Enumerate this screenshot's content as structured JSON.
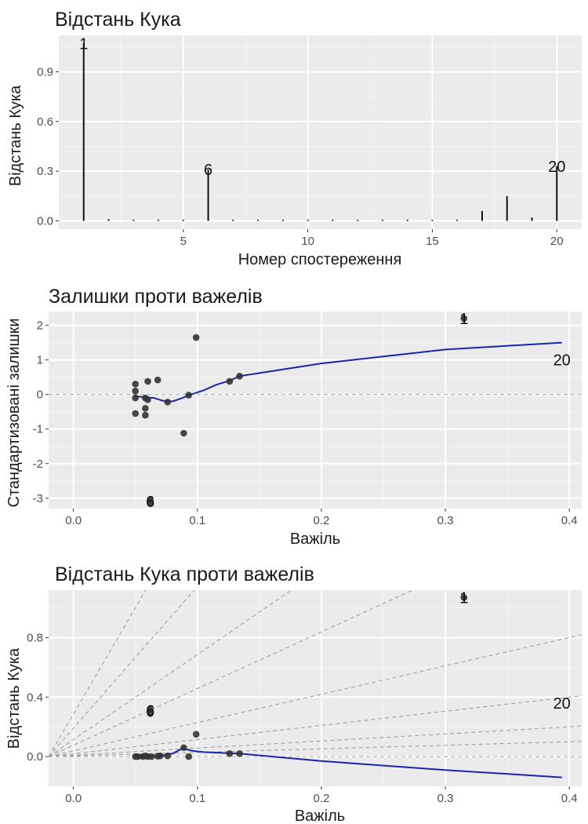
{
  "colors": {
    "panel_bg": "#ebebeb",
    "grid_major": "#ffffff",
    "points": "#333333",
    "smooth_line": "#1a25b0",
    "reference_lines": "#9a9a9a",
    "spikes": "#111111"
  },
  "chart_data": [
    {
      "type": "bar",
      "title": "Відстань Кука",
      "xlabel": "Номер спостереження",
      "ylabel": "Відстань Кука",
      "xlim": [
        0,
        21
      ],
      "ylim": [
        -0.05,
        1.12
      ],
      "xticks": [
        5,
        10,
        15,
        20
      ],
      "xtick_labels": [
        "5",
        "10",
        "15",
        "20"
      ],
      "yticks": [
        0.0,
        0.3,
        0.6,
        0.9
      ],
      "ytick_labels": [
        "0.0",
        "0.3",
        "0.6",
        "0.9"
      ],
      "grid": true,
      "x": [
        1,
        2,
        3,
        4,
        5,
        6,
        7,
        8,
        9,
        10,
        11,
        12,
        13,
        14,
        15,
        16,
        17,
        18,
        19,
        20
      ],
      "values": [
        1.07,
        0.01,
        0.0,
        0.0,
        0.0,
        0.31,
        0.0,
        0.0,
        0.0,
        0.0,
        0.0,
        0.005,
        0.0,
        0.003,
        0.003,
        0.0,
        0.06,
        0.15,
        0.02,
        0.33
      ],
      "labels": [
        {
          "x": 1,
          "y": 1.07,
          "text": "1"
        },
        {
          "x": 6,
          "y": 0.31,
          "text": "6"
        },
        {
          "x": 20,
          "y": 0.33,
          "text": "20"
        }
      ]
    },
    {
      "type": "scatter",
      "title": "Залишки проти важелів",
      "xlabel": "Важіль",
      "ylabel": "Стандартизовані залишки",
      "xlim": [
        -0.02,
        0.41
      ],
      "ylim": [
        -3.3,
        2.4
      ],
      "xticks": [
        0.0,
        0.1,
        0.2,
        0.3,
        0.4
      ],
      "xtick_labels": [
        "0.0",
        "0.1",
        "0.2",
        "0.3",
        "0.4"
      ],
      "yticks": [
        -3,
        -2,
        -1,
        0,
        1,
        2
      ],
      "ytick_labels": [
        "-3",
        "-2",
        "-1",
        "0",
        "1",
        "2"
      ],
      "grid": true,
      "hline": 0,
      "points": [
        {
          "x": 0.05,
          "y": 0.3
        },
        {
          "x": 0.05,
          "y": 0.1
        },
        {
          "x": 0.05,
          "y": -0.1
        },
        {
          "x": 0.05,
          "y": -0.55
        },
        {
          "x": 0.058,
          "y": -0.1
        },
        {
          "x": 0.058,
          "y": -0.4
        },
        {
          "x": 0.058,
          "y": -0.6
        },
        {
          "x": 0.06,
          "y": 0.38
        },
        {
          "x": 0.06,
          "y": -0.15
        },
        {
          "x": 0.068,
          "y": 0.42
        },
        {
          "x": 0.076,
          "y": -0.22
        },
        {
          "x": 0.089,
          "y": -1.12
        },
        {
          "x": 0.093,
          "y": -0.02
        },
        {
          "x": 0.099,
          "y": 1.65
        },
        {
          "x": 0.126,
          "y": 0.38
        },
        {
          "x": 0.134,
          "y": 0.53
        },
        {
          "x": 0.062,
          "y": -3.05
        },
        {
          "x": 0.062,
          "y": -3.15
        },
        {
          "x": 0.315,
          "y": 2.2
        }
      ],
      "smooth": {
        "x": [
          0.05,
          0.058,
          0.065,
          0.072,
          0.08,
          0.088,
          0.095,
          0.105,
          0.115,
          0.126,
          0.134,
          0.2,
          0.3,
          0.394
        ],
        "y": [
          -0.05,
          -0.08,
          -0.1,
          -0.18,
          -0.2,
          -0.1,
          0.0,
          0.12,
          0.28,
          0.4,
          0.53,
          0.9,
          1.3,
          1.5
        ]
      },
      "labels": [
        {
          "x": 0.062,
          "y": -3.1,
          "text": "6"
        },
        {
          "x": 0.315,
          "y": 2.2,
          "text": "1"
        },
        {
          "x": 0.394,
          "y": 1.0,
          "text": "20"
        }
      ]
    },
    {
      "type": "scatter",
      "title": "Відстань Кука проти важелів",
      "xlabel": "Важіль",
      "ylabel": "Відстань Кука",
      "xlim": [
        -0.02,
        0.41
      ],
      "ylim": [
        -0.2,
        1.12
      ],
      "xticks": [
        0.0,
        0.1,
        0.2,
        0.3,
        0.4
      ],
      "xtick_labels": [
        "0.0",
        "0.1",
        "0.2",
        "0.3",
        "0.4"
      ],
      "yticks": [
        0.0,
        0.4,
        0.8
      ],
      "ytick_labels": [
        "0.0",
        "0.4",
        "0.8"
      ],
      "grid": true,
      "hline": 0,
      "reference_slopes": [
        0.25,
        0.5,
        1,
        2,
        4,
        6,
        10,
        15
      ],
      "points": [
        {
          "x": 0.05,
          "y": 0.0
        },
        {
          "x": 0.052,
          "y": 0.0
        },
        {
          "x": 0.056,
          "y": 0.0
        },
        {
          "x": 0.058,
          "y": 0.005
        },
        {
          "x": 0.06,
          "y": 0.0
        },
        {
          "x": 0.063,
          "y": 0.0
        },
        {
          "x": 0.068,
          "y": 0.003
        },
        {
          "x": 0.07,
          "y": 0.005
        },
        {
          "x": 0.076,
          "y": 0.005
        },
        {
          "x": 0.089,
          "y": 0.06
        },
        {
          "x": 0.093,
          "y": 0.0
        },
        {
          "x": 0.099,
          "y": 0.15
        },
        {
          "x": 0.126,
          "y": 0.02
        },
        {
          "x": 0.134,
          "y": 0.02
        },
        {
          "x": 0.062,
          "y": 0.32
        },
        {
          "x": 0.062,
          "y": 0.29
        },
        {
          "x": 0.315,
          "y": 1.07
        }
      ],
      "smooth": {
        "x": [
          0.05,
          0.06,
          0.07,
          0.08,
          0.088,
          0.095,
          0.105,
          0.12,
          0.134,
          0.2,
          0.3,
          0.394
        ],
        "y": [
          0.0,
          0.0,
          0.005,
          0.02,
          0.055,
          0.04,
          0.03,
          0.025,
          0.02,
          -0.03,
          -0.09,
          -0.14
        ]
      },
      "labels": [
        {
          "x": 0.062,
          "y": 0.31,
          "text": "6"
        },
        {
          "x": 0.315,
          "y": 1.07,
          "text": "1"
        },
        {
          "x": 0.394,
          "y": 0.36,
          "text": "20"
        }
      ]
    }
  ]
}
